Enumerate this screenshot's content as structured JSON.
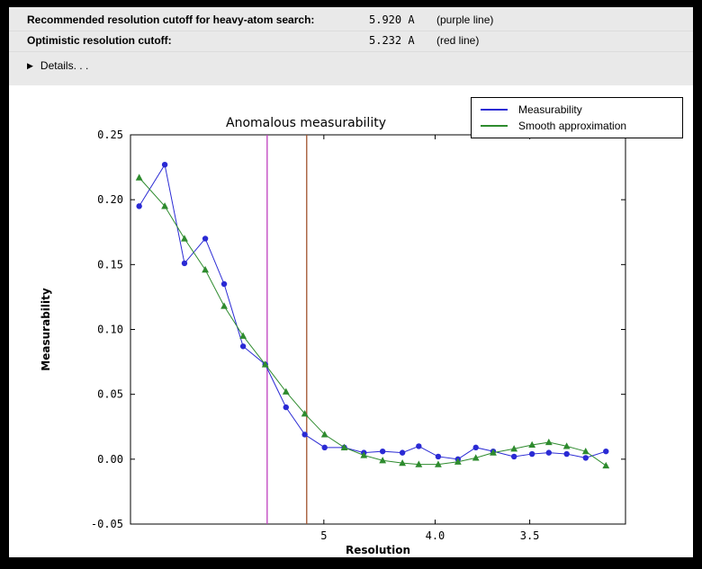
{
  "icons": {
    "disclosure": "▶"
  },
  "info": {
    "rows": [
      {
        "label": "Recommended resolution cutoff for heavy-atom search:",
        "value": "5.920 A",
        "note": "(purple line)"
      },
      {
        "label": "Optimistic resolution cutoff:",
        "value": "5.232 A",
        "note": "(red line)"
      }
    ],
    "details_label": "Details. . ."
  },
  "chart_data": {
    "type": "line",
    "title": "Anomalous measurability",
    "xlabel": "Resolution",
    "ylabel": "Measurability",
    "x_axis_note": "resolution d (Angstrom), plotted on 1/d^2 scale, d decreasing to the right",
    "xlim_inv_d_sq": [
      0.0009,
      0.101
    ],
    "ylim": [
      -0.05,
      0.25
    ],
    "grid": false,
    "legend_position": "top-right",
    "yticks": [
      {
        "v": 0.25,
        "label": "0.25"
      },
      {
        "v": 0.2,
        "label": "0.20"
      },
      {
        "v": 0.15,
        "label": "0.15"
      },
      {
        "v": 0.1,
        "label": "0.10"
      },
      {
        "v": 0.05,
        "label": "0.05"
      },
      {
        "v": 0.0,
        "label": "0.00"
      },
      {
        "v": -0.05,
        "label": "-0.05"
      }
    ],
    "xticks": [
      {
        "d": 5.0,
        "label": "5"
      },
      {
        "d": 4.0,
        "label": "4.0"
      },
      {
        "d": 3.5,
        "label": "3.5"
      }
    ],
    "vlines": [
      {
        "d": 5.92,
        "color": "#bf3fbf",
        "meaning": "recommended cutoff (purple line)"
      },
      {
        "d": 5.232,
        "color": "#a0522d",
        "meaning": "optimistic cutoff (red line)"
      }
    ],
    "bins_d": [
      19.4,
      11.3,
      9.2,
      7.9,
      7.1,
      6.5,
      5.96,
      5.56,
      5.26,
      4.99,
      4.76,
      4.56,
      4.39,
      4.23,
      4.11,
      3.98,
      3.86,
      3.76,
      3.67,
      3.57,
      3.49,
      3.42,
      3.35,
      3.28,
      3.21
    ],
    "series": [
      {
        "name": "Measurability",
        "color": "#2a2ad4",
        "marker": "circle",
        "values": [
          0.195,
          0.227,
          0.151,
          0.17,
          0.135,
          0.087,
          0.073,
          0.04,
          0.019,
          0.009,
          0.009,
          0.005,
          0.006,
          0.005,
          0.01,
          0.002,
          0.0,
          0.009,
          0.006,
          0.002,
          0.004,
          0.005,
          0.004,
          0.001,
          0.006
        ]
      },
      {
        "name": "Smooth approximation",
        "color": "#2e8b2e",
        "marker": "triangle",
        "values": [
          0.217,
          0.195,
          0.17,
          0.146,
          0.118,
          0.095,
          0.073,
          0.052,
          0.035,
          0.019,
          0.009,
          0.003,
          -0.001,
          -0.003,
          -0.004,
          -0.004,
          -0.002,
          0.001,
          0.005,
          0.008,
          0.011,
          0.013,
          0.01,
          0.006,
          -0.005
        ]
      }
    ]
  }
}
